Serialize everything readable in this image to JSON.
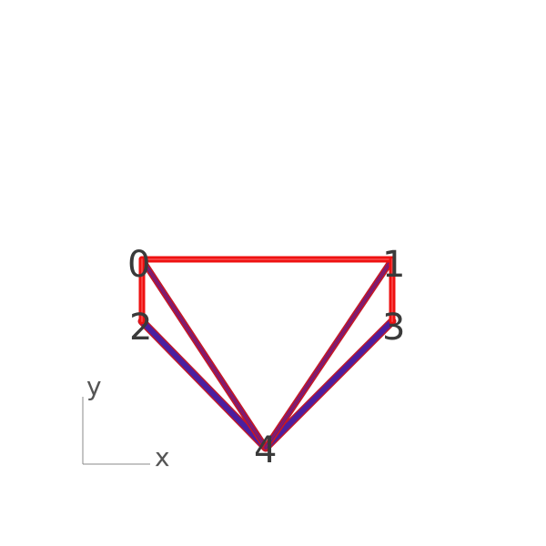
{
  "diagram": {
    "nodes": [
      {
        "id": "0",
        "label": "0"
      },
      {
        "id": "1",
        "label": "1"
      },
      {
        "id": "2",
        "label": "2"
      },
      {
        "id": "3",
        "label": "3"
      },
      {
        "id": "4",
        "label": "4"
      }
    ],
    "edges": [
      {
        "from": "0",
        "to": "1",
        "kind": "rod"
      },
      {
        "from": "0",
        "to": "2",
        "kind": "rod"
      },
      {
        "from": "1",
        "to": "3",
        "kind": "rod"
      },
      {
        "from": "0",
        "to": "4",
        "kind": "braced"
      },
      {
        "from": "1",
        "to": "4",
        "kind": "braced"
      },
      {
        "from": "2",
        "to": "4",
        "kind": "strut"
      },
      {
        "from": "3",
        "to": "4",
        "kind": "strut"
      }
    ],
    "colors": {
      "rod": "#ee1111",
      "rod_highlight": "#ff6666",
      "strut": "#4a1fa0",
      "strut_edge": "#c0182a",
      "label": "#3a3a3a",
      "axis": "#888888"
    }
  },
  "axes": {
    "x_label": "x",
    "y_label": "y"
  }
}
